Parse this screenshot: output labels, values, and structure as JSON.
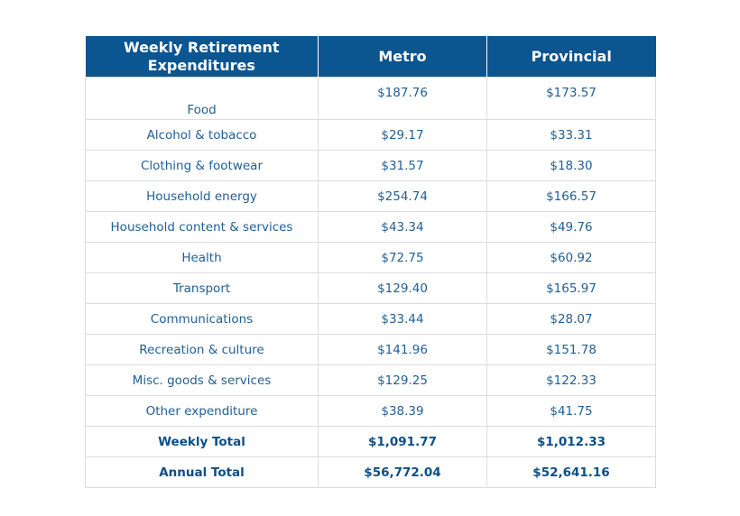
{
  "table": {
    "headers": [
      "Weekly Retirement Expenditures",
      "Metro",
      "Provincial"
    ],
    "rows": [
      {
        "category": "Food",
        "metro": "$187.76",
        "provincial": "$173.57"
      },
      {
        "category": "Alcohol & tobacco",
        "metro": "$29.17",
        "provincial": "$33.31"
      },
      {
        "category": "Clothing & footwear",
        "metro": "$31.57",
        "provincial": "$18.30"
      },
      {
        "category": "Household energy",
        "metro": "$254.74",
        "provincial": "$166.57"
      },
      {
        "category": "Household content & services",
        "metro": "$43.34",
        "provincial": "$49.76"
      },
      {
        "category": "Health",
        "metro": "$72.75",
        "provincial": "$60.92"
      },
      {
        "category": "Transport",
        "metro": "$129.40",
        "provincial": "$165.97"
      },
      {
        "category": "Communications",
        "metro": "$33.44",
        "provincial": "$28.07"
      },
      {
        "category": "Recreation & culture",
        "metro": "$141.96",
        "provincial": "$151.78"
      },
      {
        "category": "Misc. goods & services",
        "metro": "$129.25",
        "provincial": "$122.33"
      },
      {
        "category": "Other expenditure",
        "metro": "$38.39",
        "provincial": "$41.75"
      }
    ],
    "totals": [
      {
        "category": "Weekly Total",
        "metro": "$1,091.77",
        "provincial": "$1,012.33"
      },
      {
        "category": "Annual Total",
        "metro": "$56,772.04",
        "provincial": "$52,641.16"
      }
    ],
    "header_color": "#0b5591",
    "text_color": "#1f5f95"
  }
}
